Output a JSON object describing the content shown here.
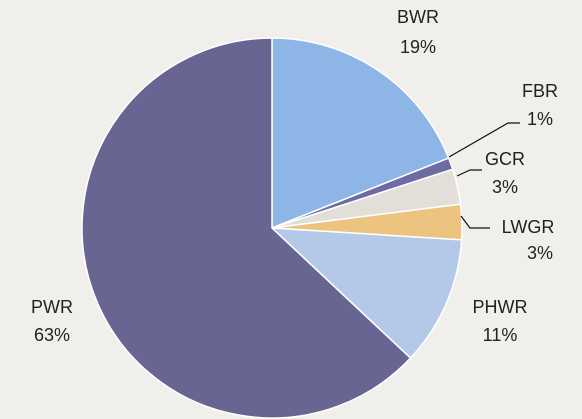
{
  "chart_data": {
    "type": "pie",
    "categories": [
      "BWR",
      "FBR",
      "GCR",
      "LWGR",
      "PHWR",
      "PWR"
    ],
    "values": [
      19,
      1,
      3,
      3,
      11,
      63
    ],
    "value_labels": [
      "19%",
      "1%",
      "3%",
      "3%",
      "11%",
      "63%"
    ],
    "colors": [
      "#8db5e6",
      "#6e6aa3",
      "#e2dfd8",
      "#ecc47f",
      "#b4c9e8",
      "#686593"
    ]
  }
}
